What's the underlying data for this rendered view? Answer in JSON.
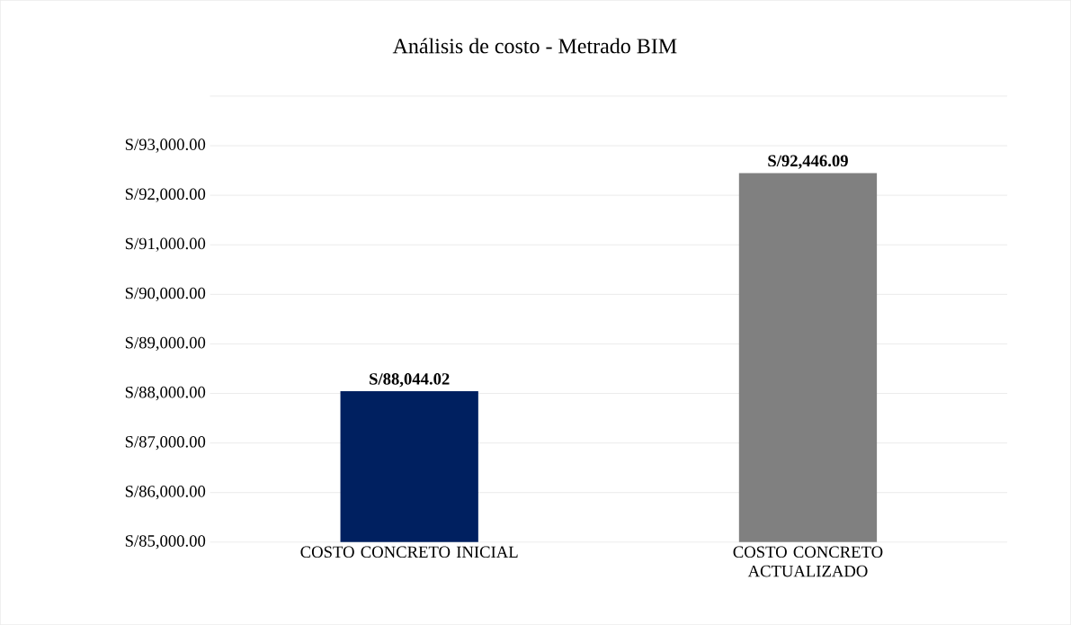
{
  "chart_data": {
    "type": "bar",
    "title": "Análisis de costo - Metrado BIM",
    "categories": [
      "COSTO CONCRETO INICIAL",
      "COSTO CONCRETO ACTUALIZADO"
    ],
    "values": [
      88044.02,
      92446.09
    ],
    "colors": [
      "#002060",
      "#808080"
    ],
    "value_labels": [
      "S/88,044.02",
      "S/92,446.09"
    ],
    "ylim": [
      85000,
      94000
    ],
    "yticks": [
      {
        "value": 85000,
        "label": "S/85,000.00"
      },
      {
        "value": 86000,
        "label": "S/86,000.00"
      },
      {
        "value": 87000,
        "label": "S/87,000.00"
      },
      {
        "value": 88000,
        "label": "S/88,000.00"
      },
      {
        "value": 89000,
        "label": "S/89,000.00"
      },
      {
        "value": 90000,
        "label": "S/90,000.00"
      },
      {
        "value": 91000,
        "label": "S/91,000.00"
      },
      {
        "value": 92000,
        "label": "S/92,000.00"
      },
      {
        "value": 93000,
        "label": "S/93,000.00"
      },
      {
        "value": 94000,
        "label": null
      }
    ],
    "grid": "y"
  }
}
